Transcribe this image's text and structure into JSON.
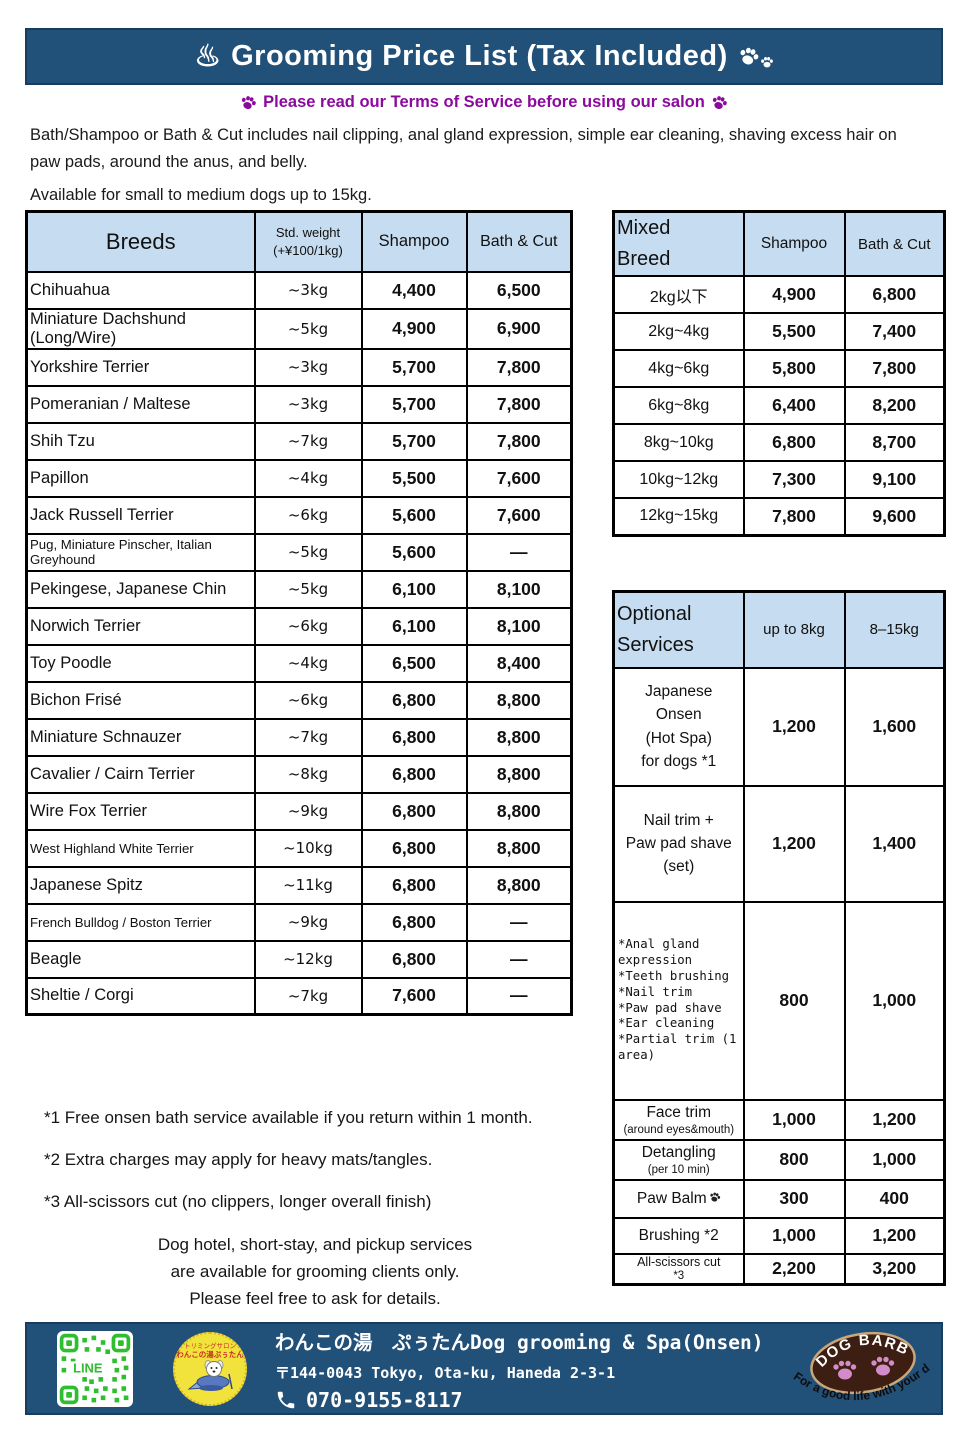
{
  "header": {
    "hot_spring_icon": "♨",
    "title": "Grooming Price List (Tax Included)",
    "paw_icon": "paw-prints-icon"
  },
  "notice": {
    "text": "Please read our Terms of Service before using our salon"
  },
  "intro": {
    "line1": "Bath/Shampoo or Bath & Cut includes nail clipping, anal gland expression, simple ear cleaning, shaving excess hair on paw pads, around the anus, and belly.",
    "line2": "Available for small to medium dogs up to 15kg."
  },
  "breeds_table": {
    "header": {
      "breeds": "Breeds",
      "weight": "Std. weight",
      "weight_note": "(+¥100/1kg)",
      "shampoo": "Shampoo",
      "bath_cut": "Bath & Cut"
    },
    "rows": [
      [
        "Chihuahua",
        "~3kg",
        "4,400",
        "6,500"
      ],
      [
        "Miniature Dachshund (Long/Wire)",
        "~5kg",
        "4,900",
        "6,900"
      ],
      [
        "Yorkshire Terrier",
        "~3kg",
        "5,700",
        "7,800"
      ],
      [
        "Pomeranian / Maltese",
        "~3kg",
        "5,700",
        "7,800"
      ],
      [
        "Shih Tzu",
        "~7kg",
        "5,700",
        "7,800"
      ],
      [
        "Papillon",
        "~4kg",
        "5,500",
        "7,600"
      ],
      [
        "Jack Russell Terrier",
        "~6kg",
        "5,600",
        "7,600"
      ],
      [
        "Pug, Miniature Pinscher, Italian Greyhound",
        "~5kg",
        "5,600",
        "—"
      ],
      [
        "Pekingese, Japanese Chin",
        "~5kg",
        "6,100",
        "8,100"
      ],
      [
        "Norwich Terrier",
        "~6kg",
        "6,100",
        "8,100"
      ],
      [
        "Toy Poodle",
        "~4kg",
        "6,500",
        "8,400"
      ],
      [
        "Bichon Frisé",
        "~6kg",
        "6,800",
        "8,800"
      ],
      [
        "Miniature Schnauzer",
        "~7kg",
        "6,800",
        "8,800"
      ],
      [
        "Cavalier / Cairn Terrier",
        "~8kg",
        "6,800",
        "8,800"
      ],
      [
        "Wire Fox Terrier",
        "~9kg",
        "6,800",
        "8,800"
      ],
      [
        "West Highland White Terrier",
        "~10kg",
        "6,800",
        "8,800"
      ],
      [
        "Japanese Spitz",
        "~11kg",
        "6,800",
        "8,800"
      ],
      [
        "French Bulldog / Boston Terrier",
        "~9kg",
        "6,800",
        "—"
      ],
      [
        "Beagle",
        "~12kg",
        "6,800",
        "—"
      ],
      [
        "Sheltie / Corgi",
        "~7kg",
        "7,600",
        "—"
      ]
    ]
  },
  "mixed_table": {
    "header": {
      "title": "Mixed\nBreed",
      "shampoo": "Shampoo",
      "bath_cut": "Bath & Cut"
    },
    "rows": [
      [
        "2kg以下",
        "4,900",
        "6,800"
      ],
      [
        "2kg~4kg",
        "5,500",
        "7,400"
      ],
      [
        "4kg~6kg",
        "5,800",
        "7,800"
      ],
      [
        "6kg~8kg",
        "6,400",
        "8,200"
      ],
      [
        "8kg~10kg",
        "6,800",
        "8,700"
      ],
      [
        "10kg~12kg",
        "7,300",
        "9,100"
      ],
      [
        "12kg~15kg",
        "7,800",
        "9,600"
      ]
    ]
  },
  "optional_table": {
    "header": {
      "title": "Optional\nServices",
      "col_small": "up to 8kg",
      "col_large": "8–15kg"
    },
    "rows": [
      {
        "label": "Japanese\nOnsen\n(Hot Spa)\nfor dogs  *1",
        "p_small": "1,200",
        "p_large": "1,600"
      },
      {
        "label": "Nail trim +\nPaw pad shave\n(set)",
        "p_small": "1,200",
        "p_large": "1,400"
      },
      {
        "label": "*Anal gland\nexpression\n*Teeth brushing\n*Nail trim\n*Paw pad shave\n*Ear cleaning\n*Partial trim (1\narea)",
        "p_small": "800",
        "p_large": "1,000"
      },
      {
        "label": "Face trim",
        "sub": "(around eyes&mouth)",
        "p_small": "1,000",
        "p_large": "1,200"
      },
      {
        "label": "Detangling",
        "sub": "(per 10 min)",
        "p_small": "800",
        "p_large": "1,000"
      },
      {
        "label": "Paw Balm",
        "icon": "paw-icon",
        "p_small": "300",
        "p_large": "400"
      },
      {
        "label": "Brushing *2",
        "p_small": "1,000",
        "p_large": "1,200"
      },
      {
        "label": "All-scissors cut",
        "sub": "*3",
        "p_small": "2,200",
        "p_large": "3,200"
      }
    ]
  },
  "footnotes": [
    "*1 Free onsen bath service available if you return within 1 month.",
    "*2 Extra charges may apply for heavy mats/tangles.",
    "*3 All-scissors cut (no clippers, longer overall finish)"
  ],
  "closing": [
    "Dog hotel, short-stay, and pickup services",
    "are available for grooming clients only.",
    "Please feel free to ask for details."
  ],
  "footer": {
    "qr_label": "LINE",
    "salon_stamp_line1": "トリミングサロン",
    "salon_stamp_line2": "わんこの湯ぷぅたん",
    "salon_name": "わんこの湯　ぷぅたんDog grooming & Spa(Onsen)",
    "address": "〒144-0043 Tokyo, Ota-ku, Haneda 2-3-1",
    "phone": "070-9155-8117",
    "badge_title": "DOG BARBER",
    "badge_tagline": "For a good life with your dog!"
  },
  "colors": {
    "banner_blue": "#215079",
    "table_header_blue": "#C6DCF0",
    "notice_purple": "#8B0A9E",
    "qr_green": "#2FBE2F",
    "badge_brown": "#3C1E12",
    "badge_paw_pink": "#D38CC9",
    "logo_yellow": "#F2E23C"
  }
}
